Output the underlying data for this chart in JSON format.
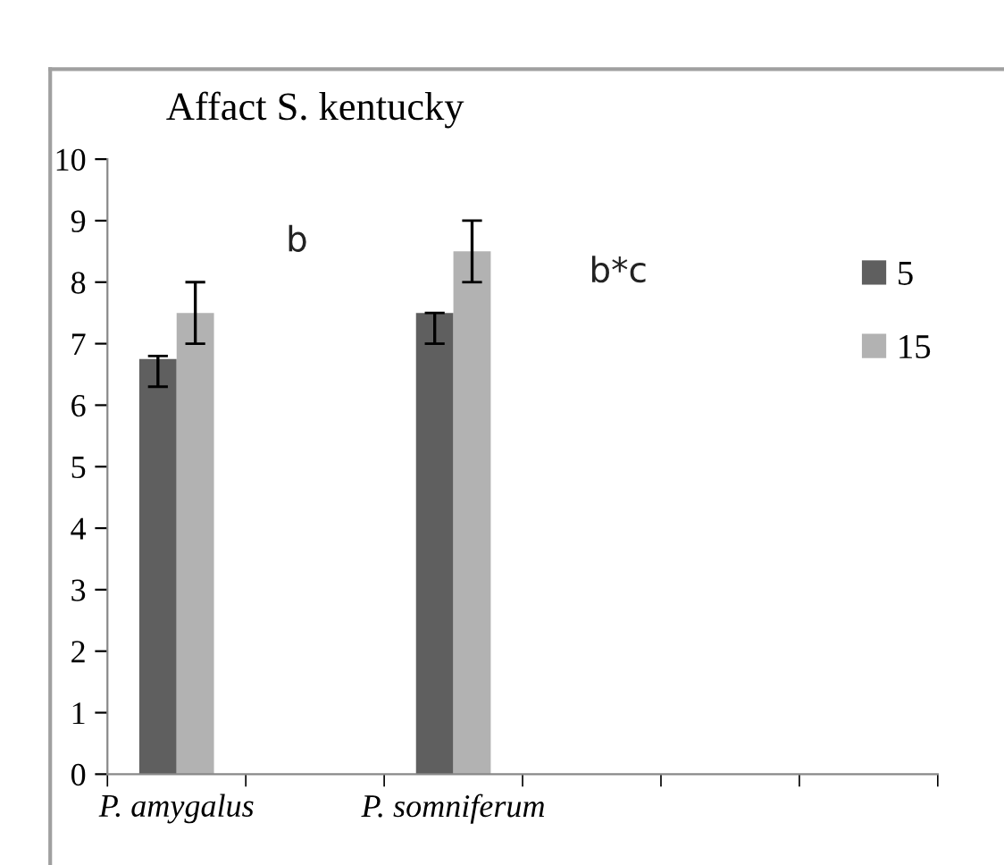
{
  "chart_data": {
    "type": "bar",
    "title": "Affact S. kentucky",
    "categories": [
      "P. amygalus",
      null,
      "P. somniferum",
      null,
      null,
      null
    ],
    "series": [
      {
        "name": "5",
        "color": "#5f5f5f",
        "values": [
          6.75,
          null,
          7.5,
          null,
          null,
          null
        ],
        "errors": [
          [
            6.3,
            6.8
          ],
          null,
          [
            7.0,
            7.5
          ],
          null,
          null,
          null
        ]
      },
      {
        "name": "15",
        "color": "#b2b2b2",
        "values": [
          7.5,
          null,
          8.5,
          null,
          null,
          null
        ],
        "errors": [
          [
            7.0,
            8.0
          ],
          null,
          [
            8.0,
            9.0
          ],
          null,
          null,
          null
        ]
      }
    ],
    "annotations": [
      "b",
      "b*c"
    ],
    "ylim": [
      0,
      10
    ],
    "yticks": [
      0,
      1,
      2,
      3,
      4,
      5,
      6,
      7,
      8,
      9,
      10
    ],
    "grid": false,
    "legend": "right"
  }
}
